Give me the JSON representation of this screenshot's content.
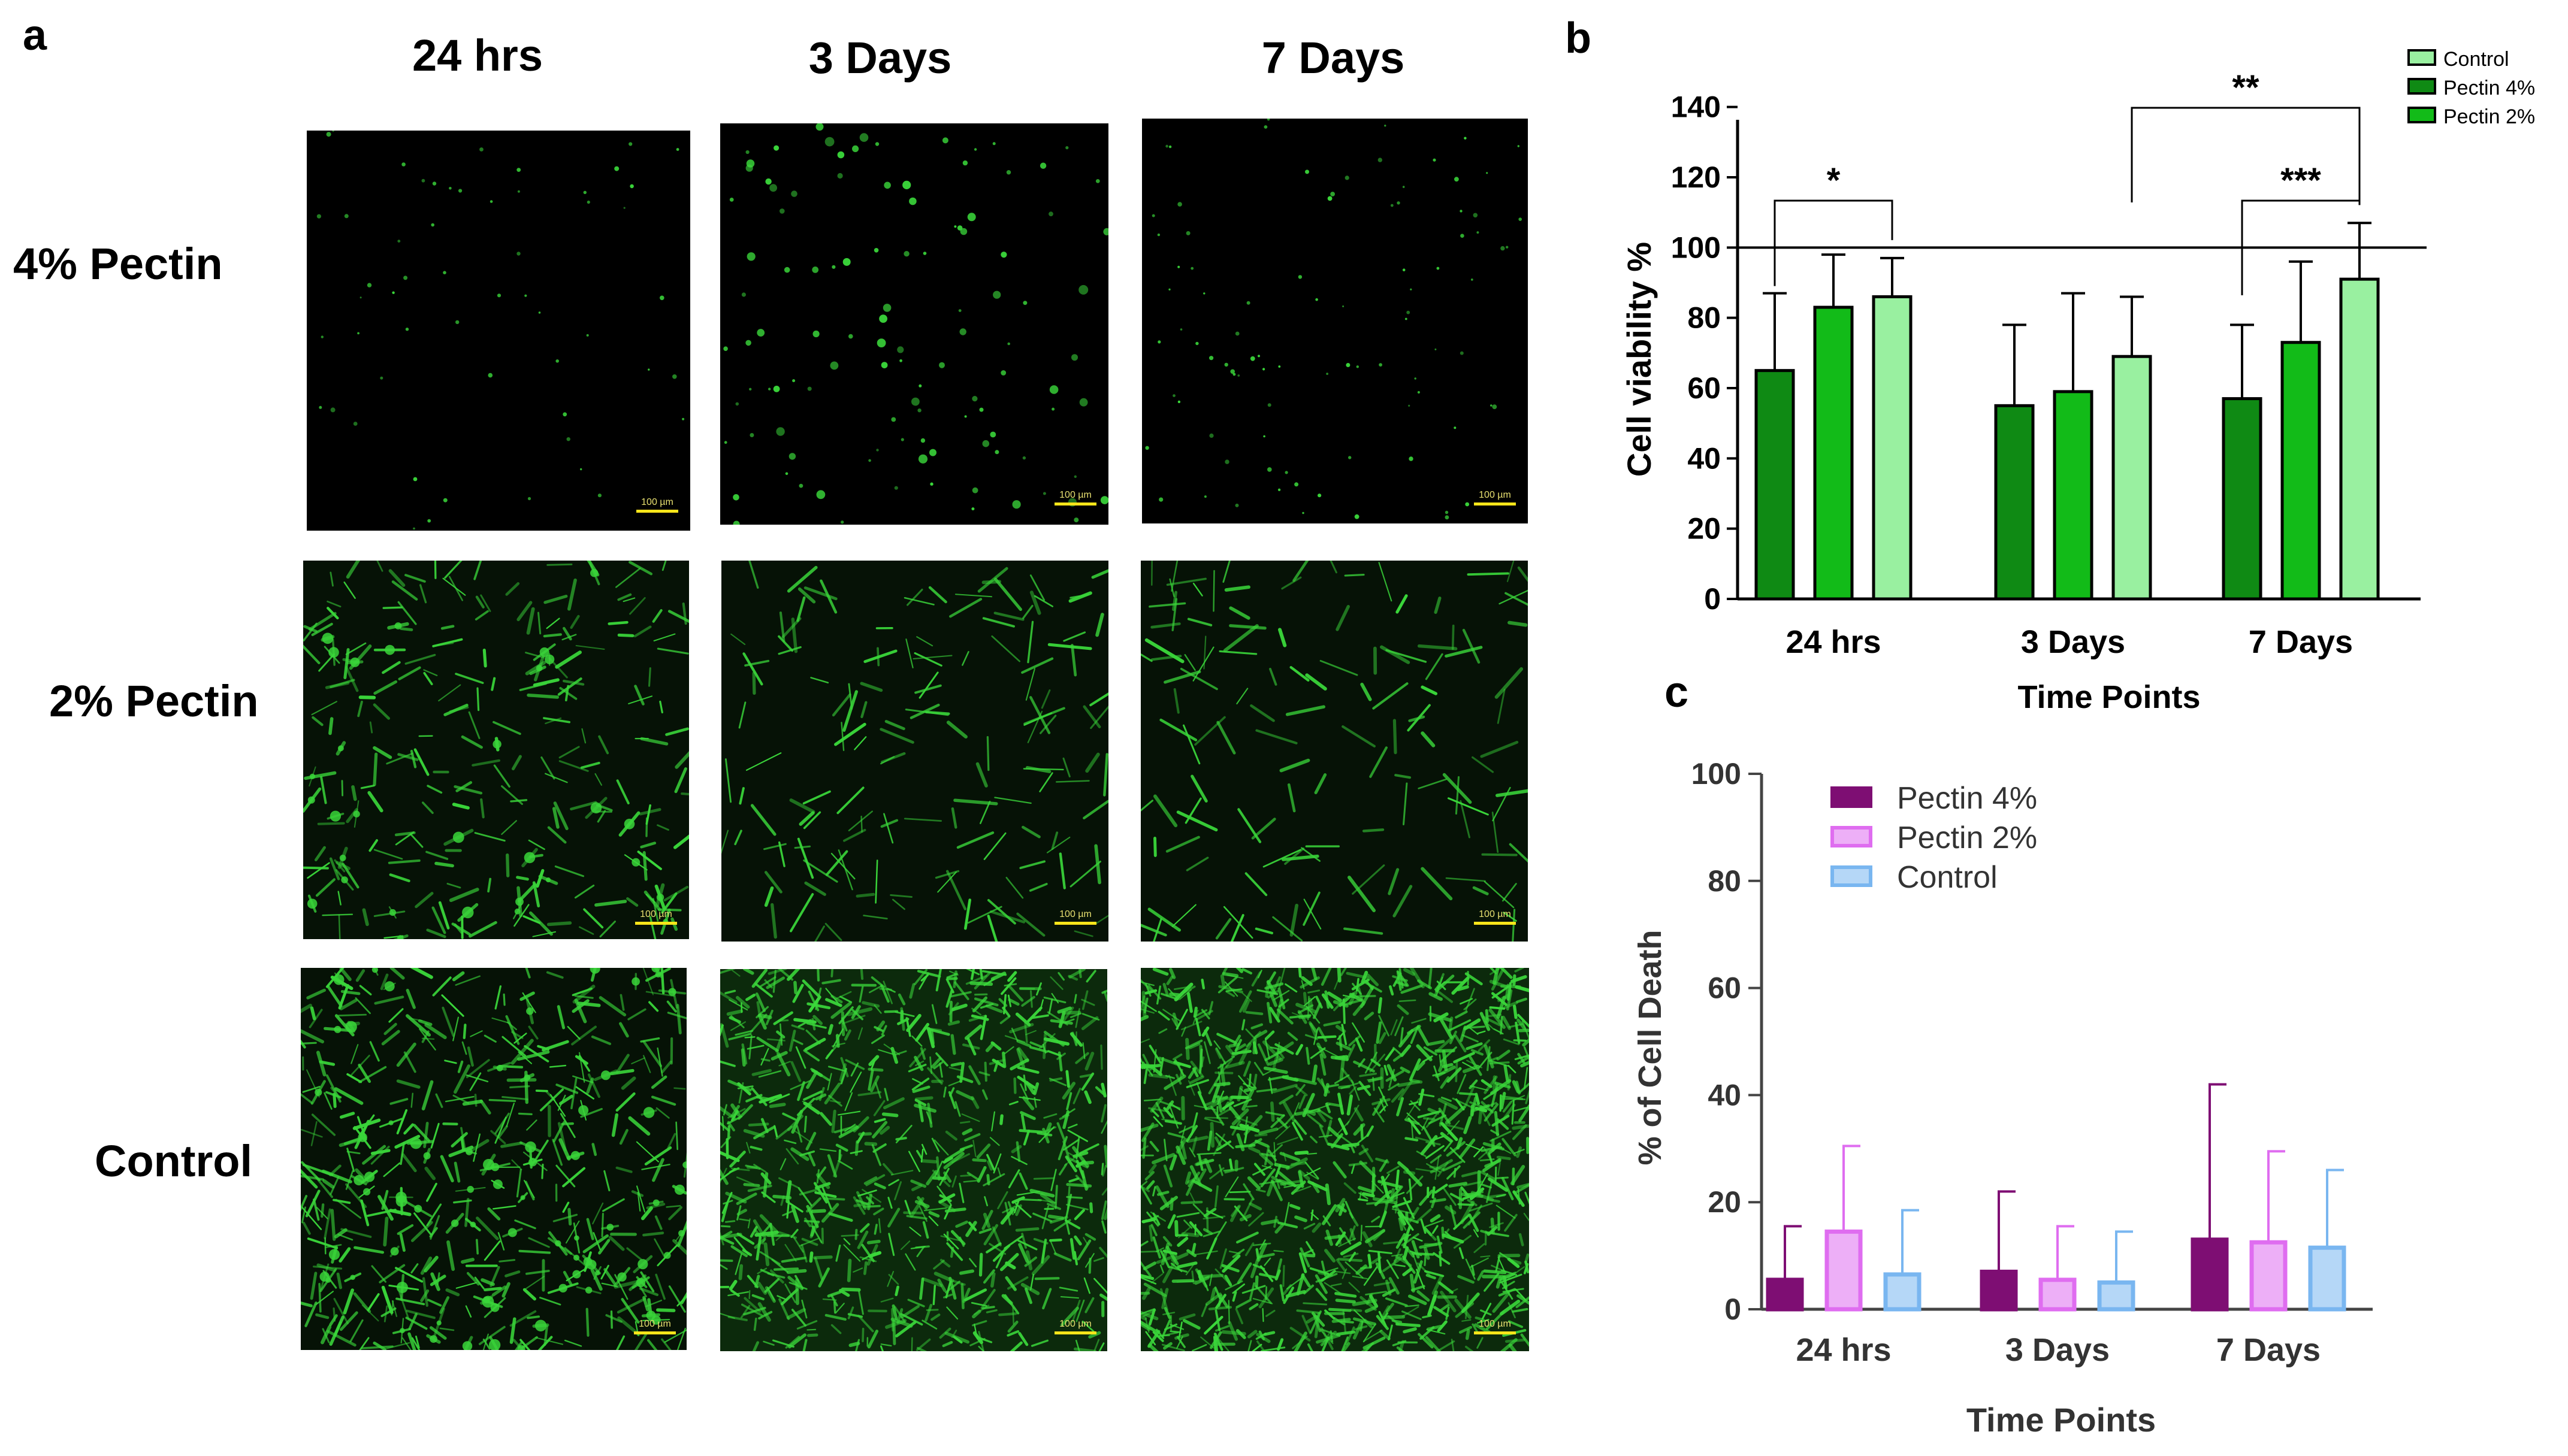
{
  "panel_a": {
    "letter": "a",
    "columns": [
      "24 hrs",
      "3 Days",
      "7 Days"
    ],
    "rows": [
      "4% Pectin",
      "2% Pectin",
      "Control"
    ],
    "scale_bar_label": "100 µm"
  },
  "colors": {
    "control": "#99f0a0",
    "pectin4": "#0f8a14",
    "pectin2": "#12bb18",
    "c_pectin4": "#7e0e73",
    "c_pectin2": "#df6df0",
    "c_control": "#79b6f0",
    "fluor": "#3ad63a"
  },
  "chart_data": [
    {
      "letter": "b",
      "type": "bar",
      "title": "",
      "xlabel": "Time Points",
      "ylabel": "Cell viability %",
      "categories": [
        "24 hrs",
        "3 Days",
        "7 Days"
      ],
      "ylim": [
        0,
        150
      ],
      "yticks": [
        0,
        20,
        40,
        60,
        80,
        100,
        120,
        140
      ],
      "reference_line": 100,
      "legend": [
        "Control",
        "Pectin 4%",
        "Pectin 2%"
      ],
      "legend_position": "top-right",
      "series": [
        {
          "name": "Pectin 4%",
          "values": [
            65,
            55,
            57
          ],
          "errors": [
            22,
            23,
            21
          ]
        },
        {
          "name": "Pectin 2%",
          "values": [
            83,
            59,
            73
          ],
          "errors": [
            15,
            28,
            23
          ]
        },
        {
          "name": "Control",
          "values": [
            86,
            69,
            91
          ],
          "errors": [
            11,
            17,
            16
          ]
        }
      ],
      "significance": [
        {
          "label": "*",
          "from": [
            "24 hrs",
            "Pectin 4%"
          ],
          "to": [
            "24 hrs",
            "Control"
          ]
        },
        {
          "label": "**",
          "from": [
            "3 Days",
            "Control"
          ],
          "to": [
            "7 Days",
            "Control"
          ]
        },
        {
          "label": "***",
          "from": [
            "7 Days",
            "Pectin 4%"
          ],
          "to": [
            "7 Days",
            "Control"
          ]
        }
      ]
    },
    {
      "letter": "c",
      "type": "bar",
      "title": "",
      "xlabel": "Time Points",
      "ylabel": "% of Cell Death",
      "categories": [
        "24 hrs",
        "3 Days",
        "7 Days"
      ],
      "ylim": [
        0,
        100
      ],
      "yticks": [
        0,
        20,
        40,
        60,
        80,
        100
      ],
      "legend": [
        "Pectin 4%",
        "Pectin 2%",
        "Control"
      ],
      "legend_position": "top-left",
      "series": [
        {
          "name": "Pectin 4%",
          "values": [
            5.5,
            7,
            13
          ],
          "errors": [
            10,
            15,
            29
          ]
        },
        {
          "name": "Pectin 2%",
          "values": [
            14.5,
            5.5,
            12.5
          ],
          "errors": [
            16,
            10,
            17
          ]
        },
        {
          "name": "Control",
          "values": [
            6.5,
            5,
            11.5
          ],
          "errors": [
            12,
            9.5,
            14.5
          ]
        }
      ]
    }
  ]
}
